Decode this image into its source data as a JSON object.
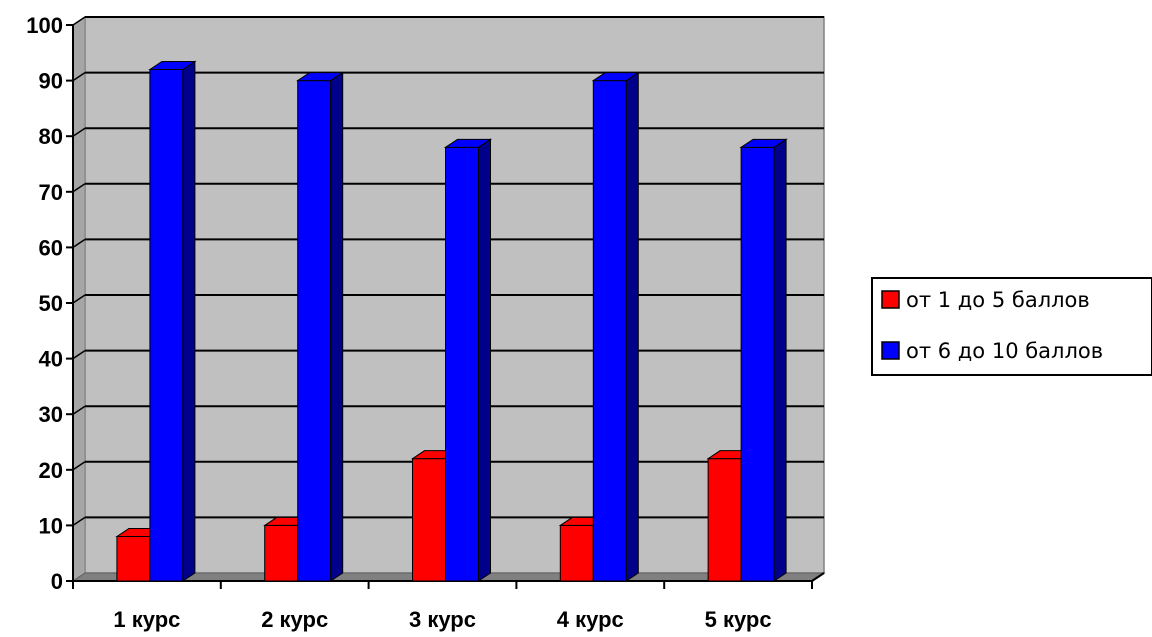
{
  "chart_data": {
    "type": "bar",
    "categories": [
      "1 курс",
      "2 курс",
      "3 курс",
      "4 курс",
      "5 курс"
    ],
    "series": [
      {
        "name": "от 1 до 5 баллов",
        "values": [
          8,
          10,
          22,
          10,
          22
        ],
        "color": "#ff0000",
        "side_color": "#8b0000"
      },
      {
        "name": "от 6 до 10 баллов",
        "values": [
          92,
          90,
          78,
          90,
          78
        ],
        "color": "#0000ff",
        "side_color": "#00008b"
      }
    ],
    "y_ticks": [
      "0",
      "10",
      "20",
      "30",
      "40",
      "50",
      "60",
      "70",
      "80",
      "90",
      "100"
    ],
    "ylim": [
      0,
      100
    ],
    "grid": true,
    "legend_position": "right",
    "plot_background": "#c0c0c0",
    "three_d": true
  }
}
